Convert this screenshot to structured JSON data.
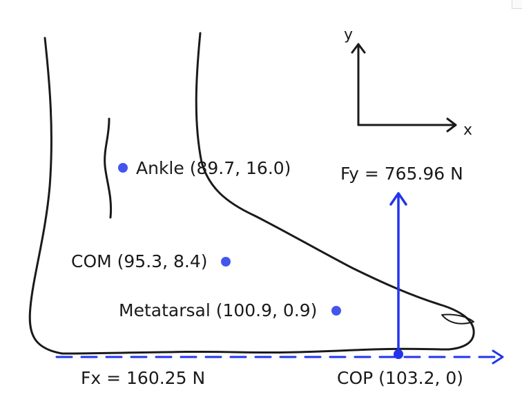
{
  "colors": {
    "outline": "#1a1a1a",
    "force": "#2233ee",
    "point": "#4455ee"
  },
  "axes": {
    "x_label": "x",
    "y_label": "y"
  },
  "points": {
    "ankle": "Ankle (89.7, 16.0)",
    "com": "COM (95.3, 8.4)",
    "metatarsal": "Metatarsal (100.9, 0.9)",
    "cop": "COP (103.2, 0)"
  },
  "forces": {
    "fy": "Fy = 765.96 N",
    "fx": "Fx = 160.25 N"
  }
}
